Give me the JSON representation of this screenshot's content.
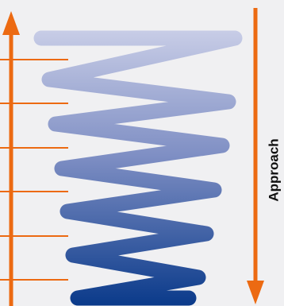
{
  "label": "Approach"
}
